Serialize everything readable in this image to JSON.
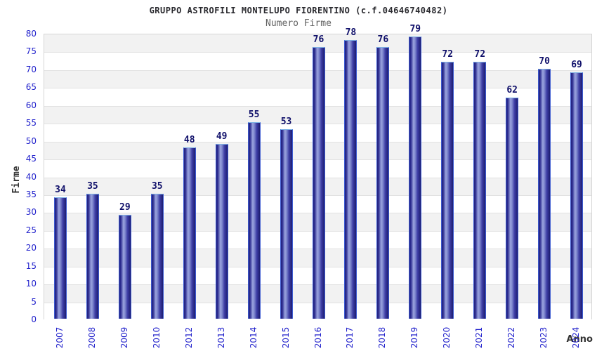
{
  "chart_data": {
    "type": "bar",
    "title": "GRUPPO ASTROFILI MONTELUPO FIORENTINO (c.f.04646740482)",
    "subtitle": "Numero Firme",
    "xlabel": "Anno",
    "ylabel": "Firme",
    "categories": [
      "2007",
      "2008",
      "2009",
      "2010",
      "2012",
      "2013",
      "2014",
      "2015",
      "2016",
      "2017",
      "2018",
      "2019",
      "2020",
      "2021",
      "2022",
      "2023",
      "2024"
    ],
    "values": [
      34,
      35,
      29,
      35,
      48,
      49,
      55,
      53,
      76,
      78,
      76,
      79,
      72,
      72,
      62,
      70,
      69
    ],
    "ylim": [
      0,
      80
    ],
    "ytick_step": 5,
    "grid": "horizontal-bands-alternating",
    "legend": "none",
    "colors": {
      "title": "#29292e",
      "subtitle": "#636363",
      "tick_label": "#2323cc",
      "value_label": "#10106a",
      "axis_title": "#333333",
      "band_gray": "#f2f2f2",
      "band_white": "#ffffff",
      "plot_border": "#d6d6d6",
      "gridline": "#e2e2e2",
      "bar_gradient": [
        "#23237f",
        "#2c2c90",
        "#9aa3de",
        "#8089cf",
        "#3d3da5",
        "#1d1d70"
      ],
      "bar_border_side": "#3c5ad0",
      "bar_border_top": "#7fb2e4"
    }
  }
}
